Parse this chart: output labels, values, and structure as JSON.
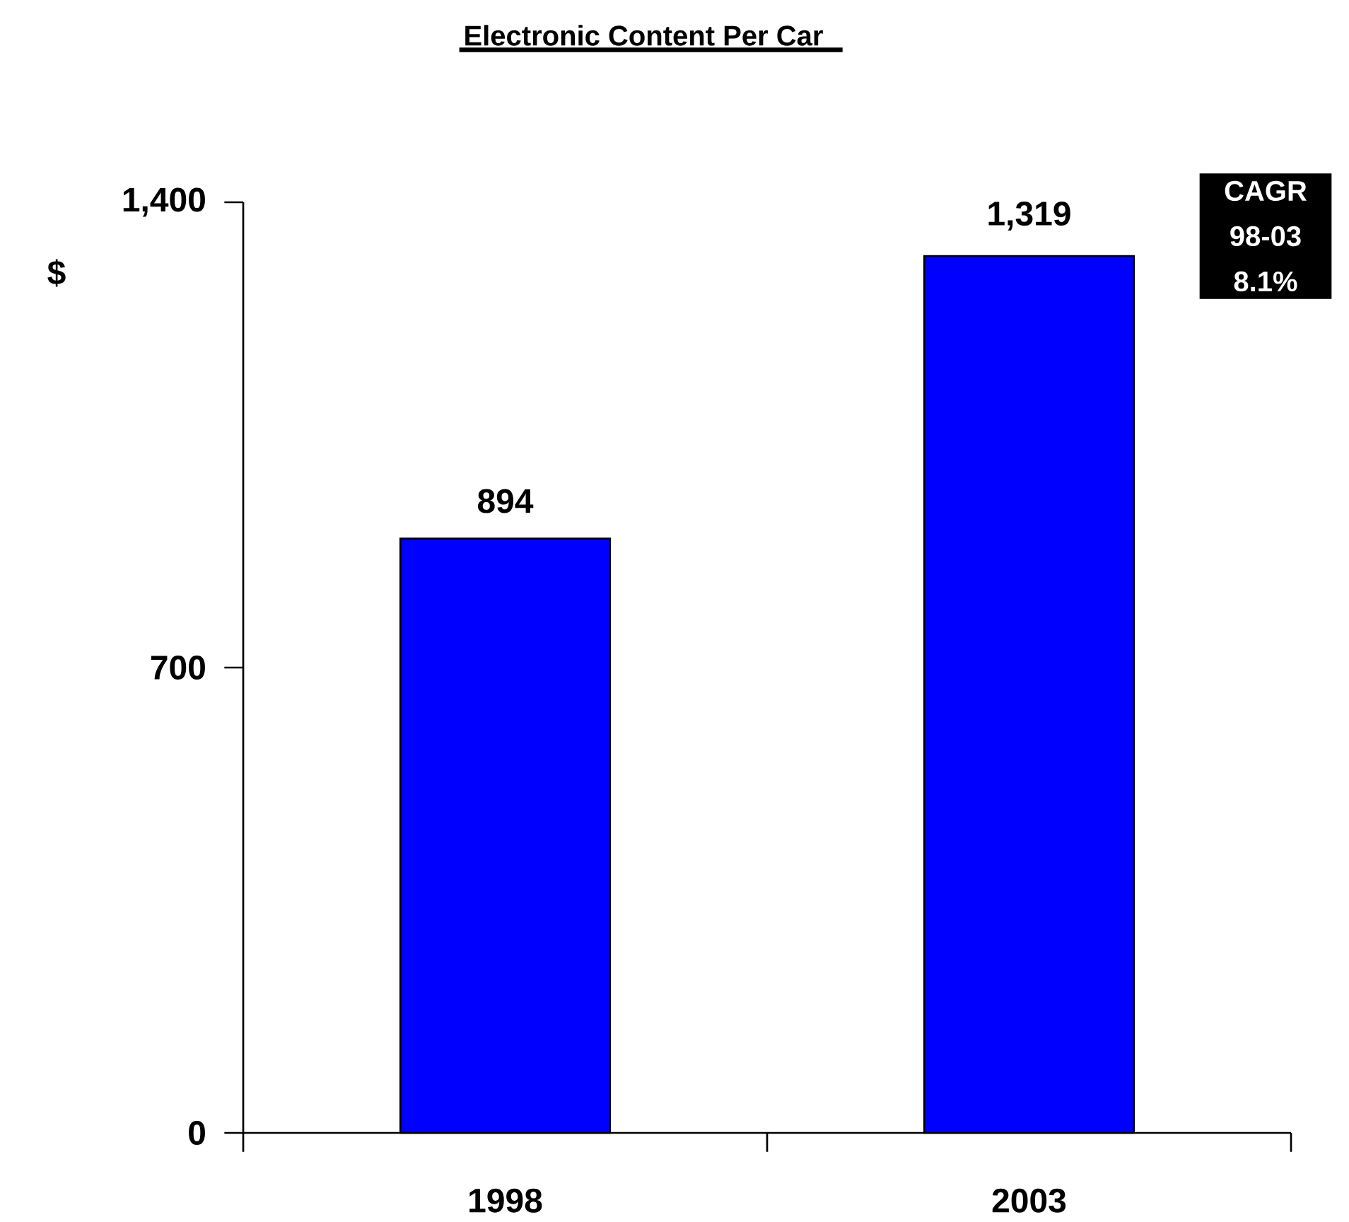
{
  "chart_data": {
    "type": "bar",
    "title": "Electronic Content Per Car",
    "ylabel": "$",
    "categories": [
      "1998",
      "2003"
    ],
    "values": [
      894,
      1319
    ],
    "value_labels": [
      "894",
      "1,319"
    ],
    "color": "#0000ff",
    "ylim": [
      0,
      1400
    ],
    "yticks": [
      0,
      700,
      {
        "value": 1400,
        "label": "1,400"
      }
    ],
    "annotations": [
      "CAGR 98-03 8.1%"
    ],
    "grid": false
  }
}
